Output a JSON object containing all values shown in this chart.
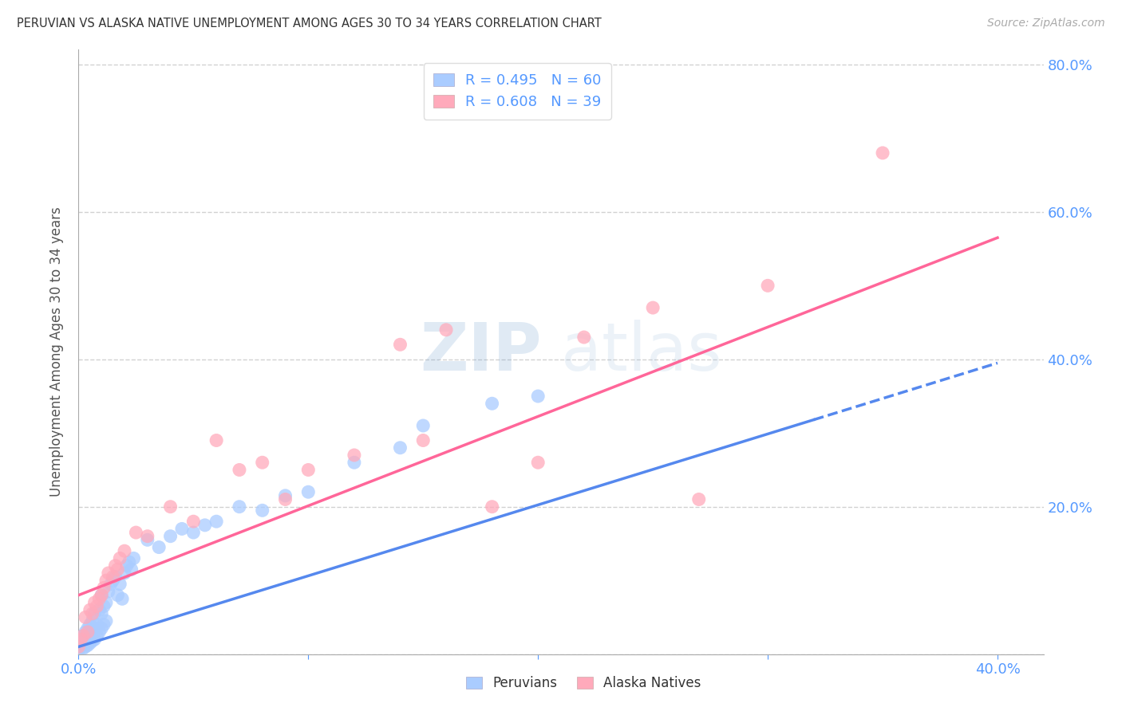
{
  "title": "PERUVIAN VS ALASKA NATIVE UNEMPLOYMENT AMONG AGES 30 TO 34 YEARS CORRELATION CHART",
  "source": "Source: ZipAtlas.com",
  "ylabel": "Unemployment Among Ages 30 to 34 years",
  "xlim": [
    0.0,
    0.42
  ],
  "ylim": [
    0.0,
    0.82
  ],
  "background_color": "#ffffff",
  "grid_color": "#cccccc",
  "peruvian_color": "#aaccff",
  "alaska_color": "#ffaabb",
  "peruvian_line_color": "#5588ee",
  "alaska_line_color": "#ff6699",
  "tick_color": "#5599ff",
  "R_peruvian": 0.495,
  "N_peruvian": 60,
  "R_alaska": 0.608,
  "N_alaska": 39,
  "legend_label_peruvian": "Peruvians",
  "legend_label_alaska": "Alaska Natives",
  "watermark_zip": "ZIP",
  "watermark_atlas": "atlas",
  "peru_line_x0": 0.0,
  "peru_line_y0": 0.01,
  "peru_line_x1": 0.4,
  "peru_line_y1": 0.395,
  "alaska_line_x0": 0.0,
  "alaska_line_y0": 0.08,
  "alaska_line_x1": 0.4,
  "alaska_line_y1": 0.565,
  "peruvian_pts_x": [
    0.0,
    0.001,
    0.001,
    0.002,
    0.002,
    0.002,
    0.003,
    0.003,
    0.003,
    0.004,
    0.004,
    0.004,
    0.005,
    0.005,
    0.005,
    0.006,
    0.006,
    0.006,
    0.007,
    0.007,
    0.007,
    0.008,
    0.008,
    0.009,
    0.009,
    0.01,
    0.01,
    0.01,
    0.011,
    0.011,
    0.012,
    0.012,
    0.013,
    0.014,
    0.015,
    0.016,
    0.017,
    0.018,
    0.019,
    0.02,
    0.021,
    0.022,
    0.023,
    0.024,
    0.03,
    0.035,
    0.04,
    0.045,
    0.05,
    0.055,
    0.06,
    0.07,
    0.08,
    0.09,
    0.1,
    0.12,
    0.14,
    0.15,
    0.18,
    0.2
  ],
  "peruvian_pts_y": [
    0.005,
    0.01,
    0.02,
    0.008,
    0.015,
    0.025,
    0.01,
    0.018,
    0.03,
    0.012,
    0.022,
    0.035,
    0.015,
    0.025,
    0.04,
    0.018,
    0.03,
    0.045,
    0.02,
    0.035,
    0.055,
    0.025,
    0.04,
    0.03,
    0.06,
    0.035,
    0.055,
    0.08,
    0.04,
    0.065,
    0.045,
    0.07,
    0.085,
    0.095,
    0.1,
    0.105,
    0.08,
    0.095,
    0.075,
    0.11,
    0.12,
    0.125,
    0.115,
    0.13,
    0.155,
    0.145,
    0.16,
    0.17,
    0.165,
    0.175,
    0.18,
    0.2,
    0.195,
    0.215,
    0.22,
    0.26,
    0.28,
    0.31,
    0.34,
    0.35
  ],
  "alaska_pts_x": [
    0.0,
    0.001,
    0.002,
    0.003,
    0.004,
    0.005,
    0.006,
    0.007,
    0.008,
    0.009,
    0.01,
    0.011,
    0.012,
    0.013,
    0.015,
    0.016,
    0.017,
    0.018,
    0.02,
    0.025,
    0.03,
    0.04,
    0.05,
    0.06,
    0.07,
    0.08,
    0.09,
    0.1,
    0.12,
    0.14,
    0.15,
    0.16,
    0.18,
    0.2,
    0.22,
    0.25,
    0.27,
    0.3,
    0.35
  ],
  "alaska_pts_y": [
    0.01,
    0.02,
    0.025,
    0.05,
    0.03,
    0.06,
    0.055,
    0.07,
    0.065,
    0.075,
    0.08,
    0.09,
    0.1,
    0.11,
    0.105,
    0.12,
    0.115,
    0.13,
    0.14,
    0.165,
    0.16,
    0.2,
    0.18,
    0.29,
    0.25,
    0.26,
    0.21,
    0.25,
    0.27,
    0.42,
    0.29,
    0.44,
    0.2,
    0.26,
    0.43,
    0.47,
    0.21,
    0.5,
    0.68
  ]
}
